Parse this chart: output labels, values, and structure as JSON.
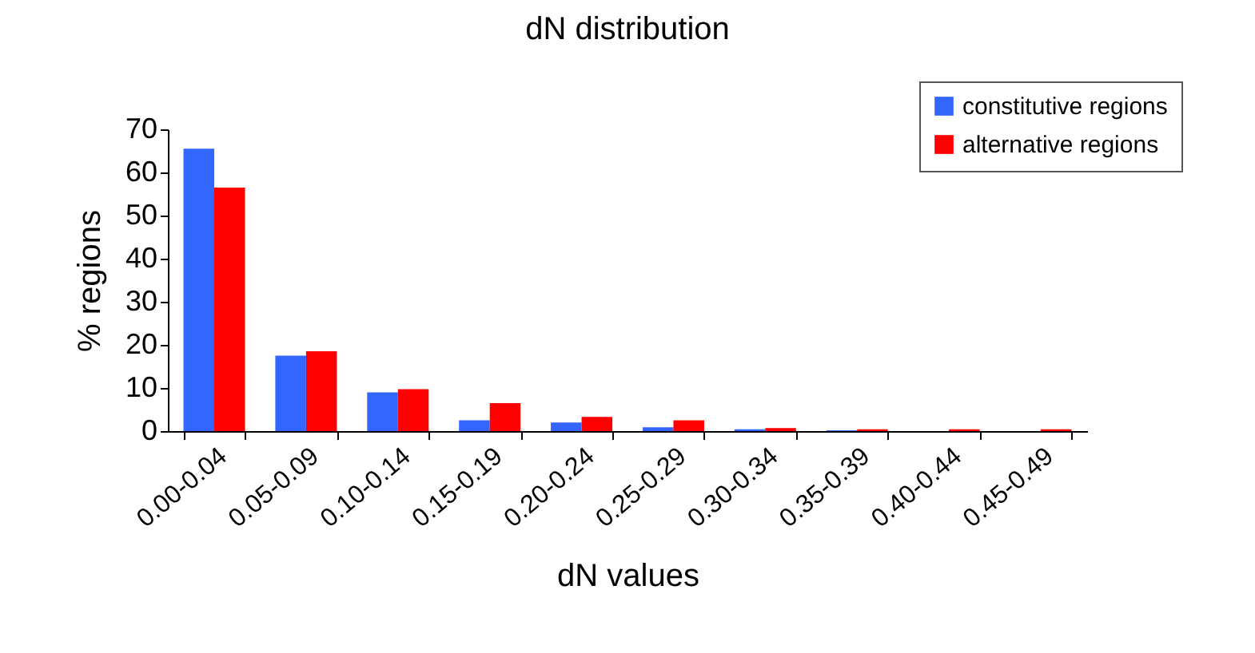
{
  "chart_data": {
    "type": "bar",
    "title": "dN distribution",
    "xlabel": "dN values",
    "ylabel": "% regions",
    "categories": [
      "0.00-0.04",
      "0.05-0.09",
      "0.10-0.14",
      "0.15-0.19",
      "0.20-0.24",
      "0.25-0.29",
      "0.30-0.34",
      "0.35-0.39",
      "0.40-0.44",
      "0.45-0.49"
    ],
    "series": [
      {
        "name": "constitutive regions",
        "color": "#3366ff",
        "values": [
          65.5,
          17.5,
          9,
          2.5,
          2,
          0.9,
          0.4,
          0.2,
          0,
          0
        ]
      },
      {
        "name": "alternative regions",
        "color": "#ff0000",
        "values": [
          56.5,
          18.5,
          9.7,
          6.5,
          3.3,
          2.5,
          0.7,
          0.4,
          0.4,
          0.4
        ]
      }
    ],
    "ylim": [
      0,
      70
    ],
    "yticks": [
      0,
      10,
      20,
      30,
      40,
      50,
      60,
      70
    ],
    "grid": false,
    "legend": "top right"
  }
}
